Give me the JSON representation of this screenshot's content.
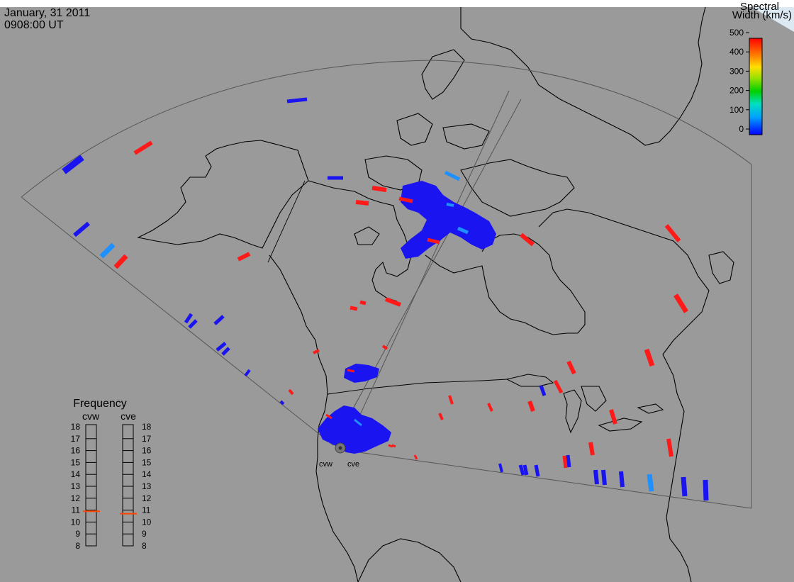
{
  "header": {
    "date": "January, 31 2011",
    "time": "0908:00 UT"
  },
  "colorbar": {
    "title_line1": "Spectral",
    "title_line2": "Width (km/s)",
    "ticks": [
      "500",
      "400",
      "300",
      "200",
      "100",
      "0"
    ],
    "min": 0,
    "max": 500
  },
  "radars": {
    "west": "cvw",
    "east": "cve"
  },
  "frequency": {
    "title": "Frequency",
    "ticks": [
      "18",
      "17",
      "16",
      "15",
      "14",
      "13",
      "12",
      "11",
      "10",
      "9",
      "8"
    ],
    "cvw_mhz": 10.9,
    "cve_mhz": 10.7
  },
  "colors": {
    "background": "#9a9a9a",
    "low": "#1a14f0",
    "mid": "#1e90ff",
    "high": "#ff1a1a",
    "indicator": "#ff4500",
    "map_lines": "#000000",
    "fov_lines": "#555555"
  },
  "chart_data": {
    "type": "scatter",
    "title": "",
    "legend": "top-right",
    "xlabel": "",
    "ylabel": ""
  }
}
